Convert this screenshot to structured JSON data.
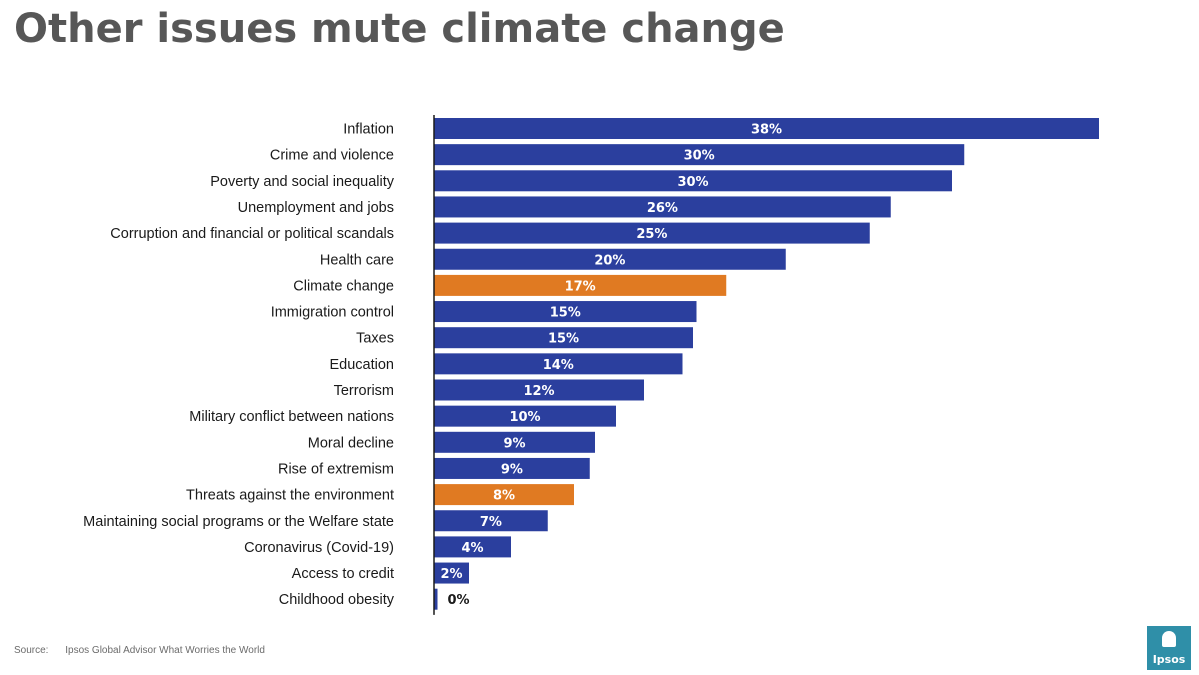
{
  "title": "Other issues mute climate change",
  "source": {
    "key": "Source:",
    "text": "Ipsos Global Advisor What Worries the World"
  },
  "logo": {
    "text": "Ipsos"
  },
  "colors": {
    "default_bar": "#2b3f9e",
    "highlight_bar": "#e07a22",
    "axis": "#1a1a1a",
    "logo_bg": "#2f8fa8"
  },
  "chart_data": {
    "type": "bar",
    "orientation": "horizontal",
    "title": "",
    "xlabel": "",
    "ylabel": "",
    "xlim": [
      0,
      38
    ],
    "grid": false,
    "categories": [
      "Inflation",
      "Crime and violence",
      "Poverty and social inequality",
      "Unemployment and jobs",
      "Corruption and financial or political scandals",
      "Health care",
      "Climate change",
      "Immigration control",
      "Taxes",
      "Education",
      "Terrorism",
      "Military conflict between nations",
      "Moral decline",
      "Rise of extremism",
      "Threats against the environment",
      "Maintaining social programs or the Welfare state",
      "Coronavirus (Covid-19)",
      "Access to credit",
      "Childhood obesity"
    ],
    "values": [
      38,
      30,
      30,
      26,
      25,
      20,
      17,
      15,
      15,
      14,
      12,
      10,
      9,
      9,
      8,
      7,
      4,
      2,
      0
    ],
    "plot_values": [
      38,
      30.3,
      29.6,
      26.1,
      24.9,
      20.1,
      16.7,
      15,
      14.8,
      14.2,
      12,
      10.4,
      9.2,
      8.9,
      8,
      6.5,
      4.4,
      2,
      0.2
    ],
    "data_labels": [
      "38%",
      "30%",
      "30%",
      "26%",
      "25%",
      "20%",
      "17%",
      "15%",
      "15%",
      "14%",
      "12%",
      "10%",
      "9%",
      "9%",
      "8%",
      "7%",
      "4%",
      "2%",
      "0%"
    ],
    "highlighted": [
      "Climate change",
      "Threats against the environment"
    ]
  }
}
